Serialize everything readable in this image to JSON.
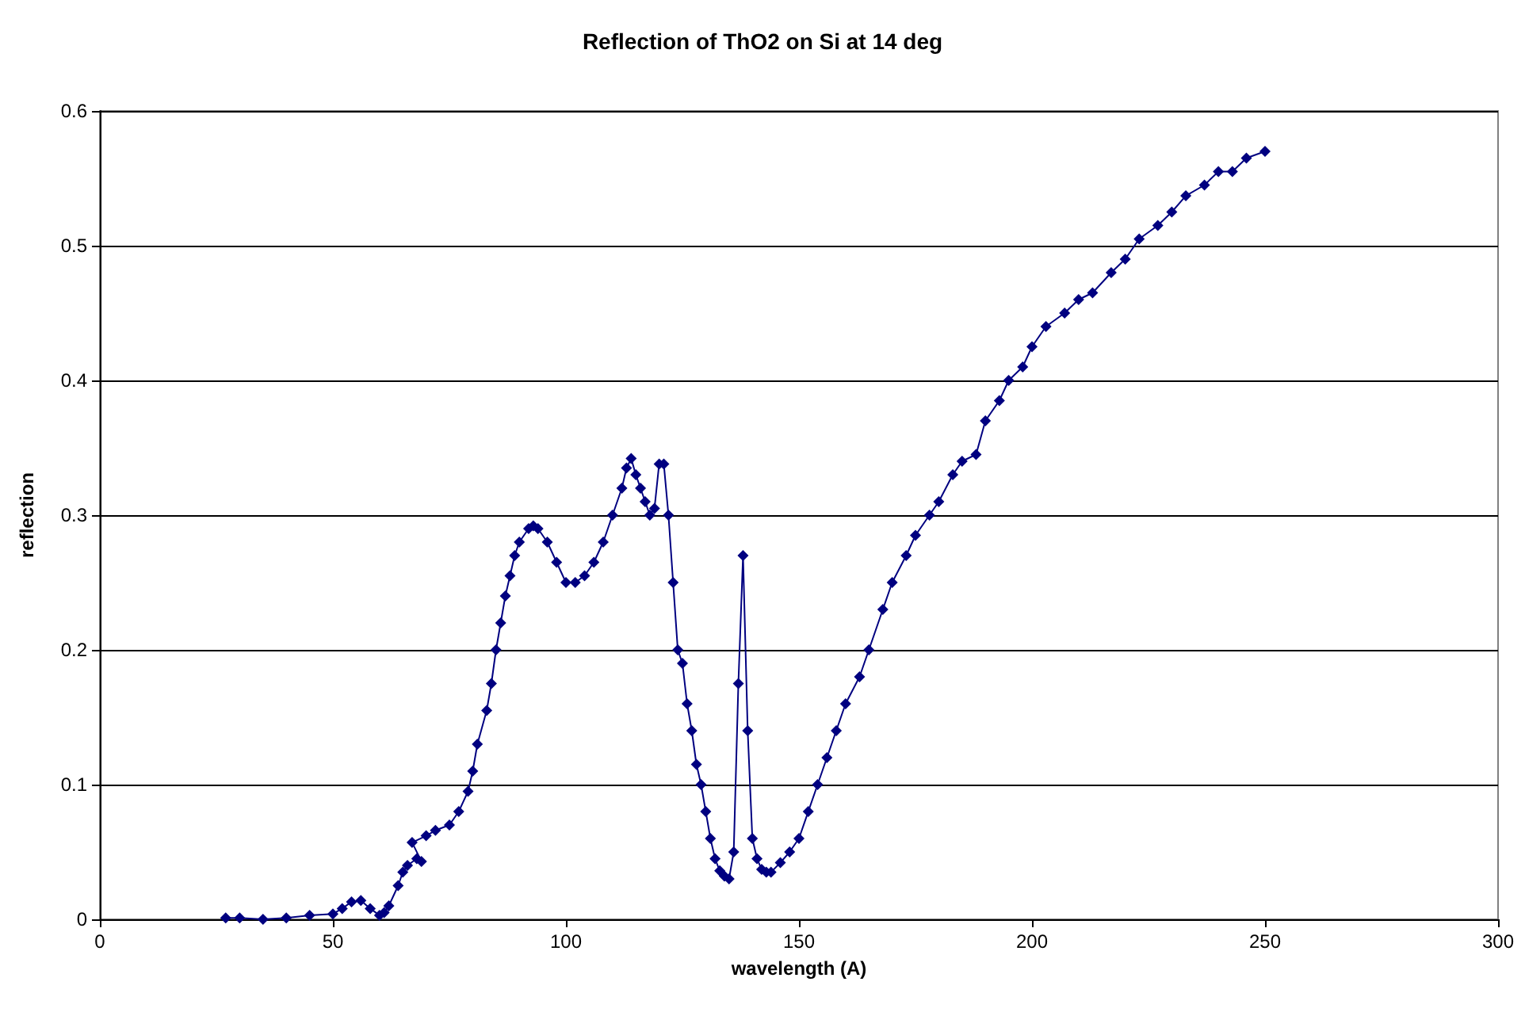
{
  "chart_data": {
    "type": "line",
    "title": "Reflection of ThO2 on Si at 14 deg",
    "xlabel": "wavelength (A)",
    "ylabel": "reflection",
    "xlim": [
      0,
      300
    ],
    "xticks": [
      0,
      50,
      100,
      150,
      200,
      250,
      300
    ],
    "ylim": [
      0,
      0.6
    ],
    "yticks": [
      0,
      0.1,
      0.2,
      0.3,
      0.4,
      0.5,
      0.6
    ],
    "grid": "y",
    "marker": "diamond",
    "line_style": "solid",
    "series": [
      {
        "color": "#000080",
        "x": [
          27,
          30,
          35,
          40,
          45,
          50,
          52,
          54,
          56,
          58,
          60,
          61,
          62,
          64,
          65,
          66,
          68,
          69,
          67,
          70,
          72,
          75,
          77,
          79,
          80,
          81,
          83,
          84,
          85,
          86,
          87,
          88,
          89,
          90,
          92,
          93,
          94,
          96,
          98,
          100,
          102,
          104,
          106,
          108,
          110,
          112,
          113,
          114,
          115,
          116,
          117,
          118,
          119,
          120,
          121,
          122,
          123,
          124,
          125,
          126,
          127,
          128,
          129,
          130,
          131,
          132,
          133,
          134,
          135,
          136,
          137,
          138,
          139,
          140,
          141,
          142,
          143,
          144,
          146,
          148,
          150,
          152,
          154,
          156,
          158,
          160,
          163,
          165,
          168,
          170,
          173,
          175,
          178,
          180,
          183,
          185,
          188,
          190,
          193,
          195,
          198,
          200,
          203,
          207,
          210,
          213,
          217,
          220,
          223,
          227,
          230,
          233,
          237,
          240,
          243,
          246,
          250
        ],
        "values": [
          0.001,
          0.001,
          0,
          0.001,
          0.003,
          0.004,
          0.008,
          0.013,
          0.014,
          0.008,
          0.003,
          0.005,
          0.01,
          0.025,
          0.035,
          0.04,
          0.045,
          0.043,
          0.057,
          0.062,
          0.066,
          0.07,
          0.08,
          0.095,
          0.11,
          0.13,
          0.155,
          0.175,
          0.2,
          0.22,
          0.24,
          0.255,
          0.27,
          0.28,
          0.29,
          0.292,
          0.29,
          0.28,
          0.265,
          0.25,
          0.25,
          0.255,
          0.265,
          0.28,
          0.3,
          0.32,
          0.335,
          0.342,
          0.33,
          0.32,
          0.31,
          0.3,
          0.305,
          0.338,
          0.338,
          0.3,
          0.25,
          0.2,
          0.19,
          0.16,
          0.14,
          0.115,
          0.1,
          0.08,
          0.06,
          0.045,
          0.036,
          0.032,
          0.03,
          0.05,
          0.175,
          0.27,
          0.14,
          0.06,
          0.045,
          0.037,
          0.035,
          0.035,
          0.042,
          0.05,
          0.06,
          0.08,
          0.1,
          0.12,
          0.14,
          0.16,
          0.18,
          0.2,
          0.23,
          0.25,
          0.27,
          0.285,
          0.3,
          0.31,
          0.33,
          0.34,
          0.345,
          0.37,
          0.385,
          0.4,
          0.41,
          0.425,
          0.44,
          0.45,
          0.46,
          0.465,
          0.48,
          0.49,
          0.505,
          0.515,
          0.525,
          0.537,
          0.545,
          0.555,
          0.555,
          0.565,
          0.57
        ]
      }
    ]
  }
}
